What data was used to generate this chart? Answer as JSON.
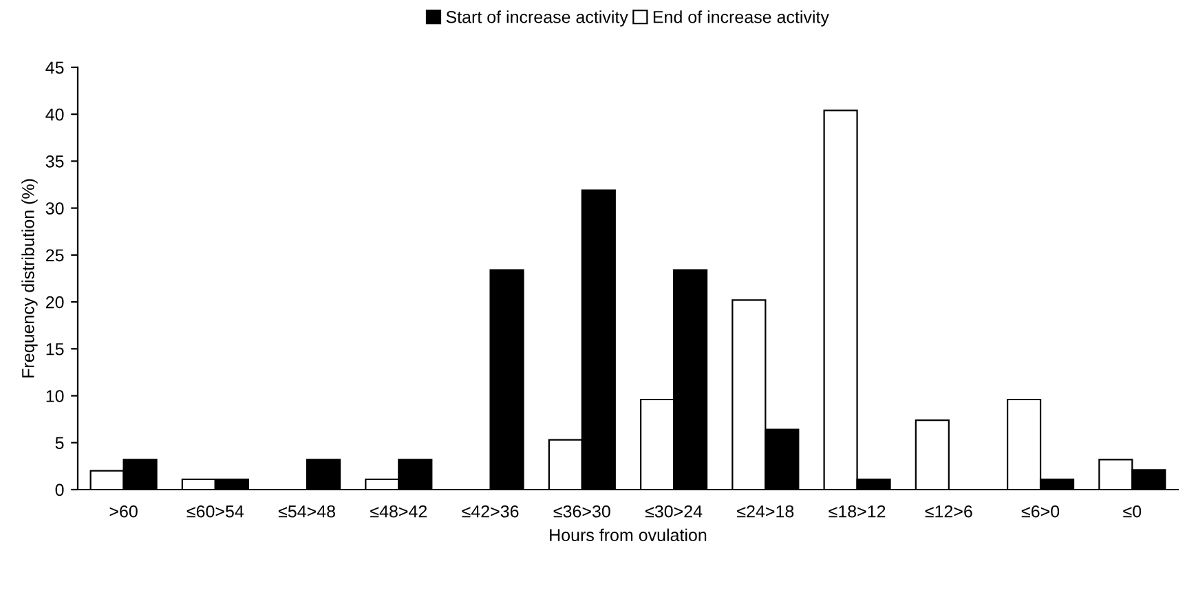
{
  "chart_data": {
    "type": "bar",
    "xlabel": "Hours from ovulation",
    "ylabel": "Frequency distribution (%)",
    "categories": [
      ">60",
      "≤60>54",
      "≤54>48",
      "≤48>42",
      "≤42>36",
      "≤36>30",
      "≤30>24",
      "≤24>18",
      "≤18>12",
      "≤12>6",
      "≤6>0",
      "≤0"
    ],
    "series": [
      {
        "name": "End of increase activity",
        "color": "#ffffff",
        "values": [
          2.0,
          1.1,
          0,
          1.1,
          0,
          5.3,
          9.6,
          20.2,
          40.4,
          7.4,
          9.6,
          3.2
        ]
      },
      {
        "name": "Start of increase activity",
        "color": "#000000",
        "values": [
          3.2,
          1.1,
          3.2,
          3.2,
          23.4,
          31.9,
          23.4,
          6.4,
          1.1,
          0,
          1.1,
          2.1
        ]
      }
    ],
    "ylim": [
      0,
      45
    ],
    "yticks": [
      0,
      5,
      10,
      15,
      20,
      25,
      30,
      35,
      40,
      45
    ],
    "grid": false,
    "legend": "top"
  }
}
